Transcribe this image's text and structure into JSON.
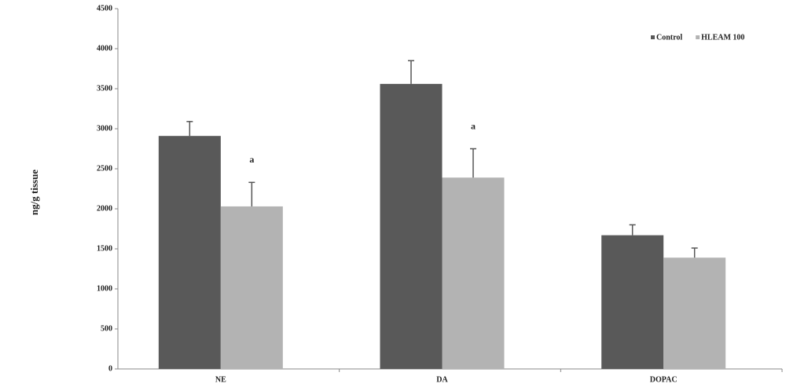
{
  "chart_data": {
    "type": "bar",
    "y_label": "ng/g tissue",
    "categories": [
      "NE",
      "DA",
      "DOPAC"
    ],
    "series": [
      {
        "name": "Control",
        "color": "#595959",
        "values": [
          2910,
          3560,
          1670
        ],
        "errors": [
          180,
          290,
          130
        ]
      },
      {
        "name": "HLEAM 100",
        "color": "#b3b3b3",
        "values": [
          2030,
          2390,
          1390
        ],
        "errors": [
          300,
          360,
          120
        ],
        "annotations": [
          "a",
          "a",
          null
        ]
      }
    ],
    "ylim": [
      0,
      4500
    ],
    "yticks": [
      0,
      500,
      1000,
      1500,
      2000,
      2500,
      3000,
      3500,
      4000,
      4500
    ],
    "legend": "upper right"
  }
}
